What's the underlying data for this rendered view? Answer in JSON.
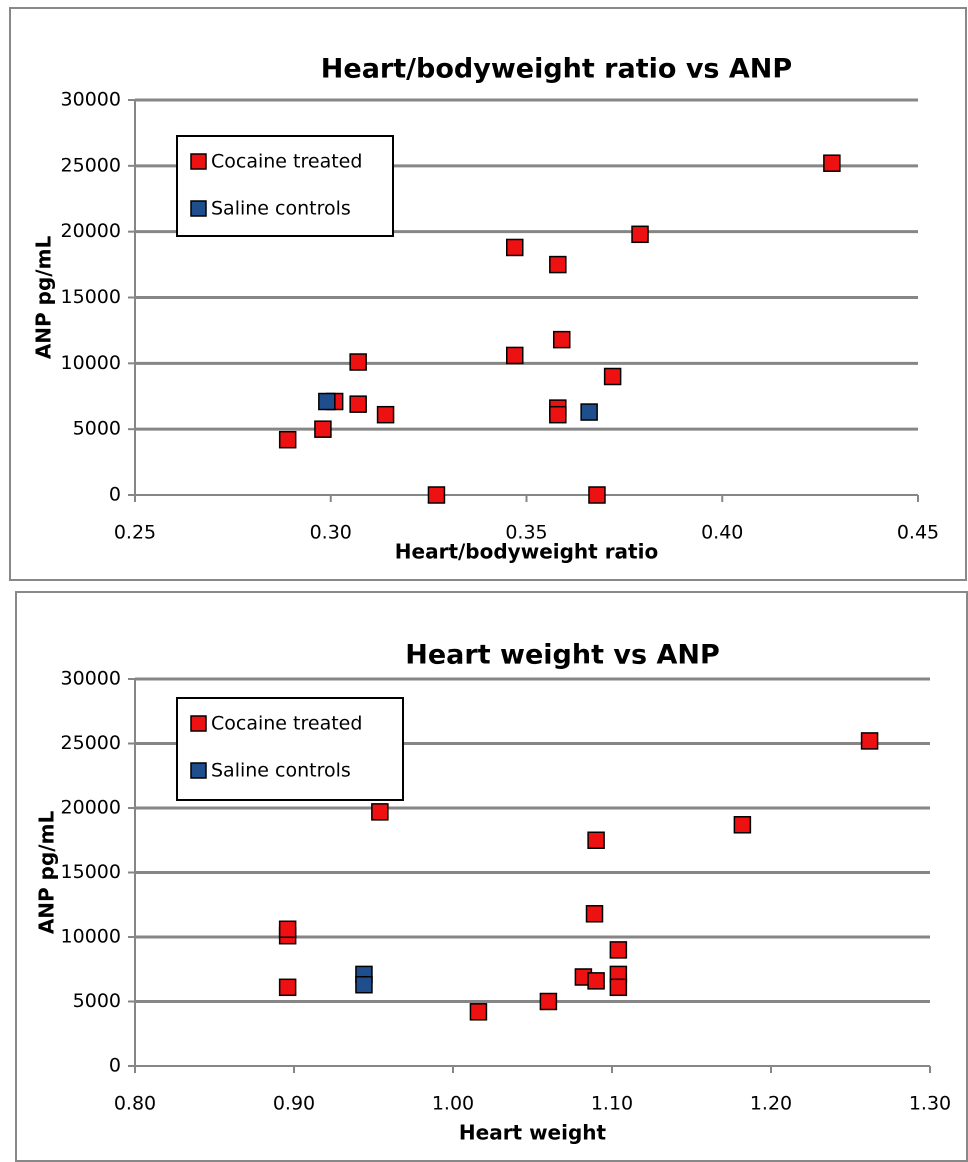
{
  "chart_data": [
    {
      "type": "scatter",
      "title": "Heart/bodyweight ratio vs ANP",
      "x_label": "Heart/bodyweight ratio",
      "y_label": "ANP pg/mL",
      "xlim": [
        0.25,
        0.45
      ],
      "xticks": [
        {
          "value": 0.25,
          "label": "0.25"
        },
        {
          "value": 0.3,
          "label": "0.30"
        },
        {
          "value": 0.35,
          "label": "0.35"
        },
        {
          "value": 0.4,
          "label": "0.40"
        },
        {
          "value": 0.45,
          "label": "0.45"
        }
      ],
      "ylim": [
        0,
        30000
      ],
      "yticks": [
        0,
        5000,
        10000,
        15000,
        20000,
        25000,
        30000
      ],
      "grid": true,
      "legend": "upper left",
      "series": [
        {
          "name": "Cocaine treated",
          "color": "#ee1111",
          "x": [
            0.289,
            0.298,
            0.301,
            0.307,
            0.307,
            0.314,
            0.327,
            0.347,
            0.347,
            0.358,
            0.358,
            0.358,
            0.359,
            0.368,
            0.372,
            0.379,
            0.428
          ],
          "values": [
            4200,
            5000,
            7100,
            6900,
            10100,
            6100,
            0,
            18800,
            10600,
            17500,
            6600,
            6100,
            11800,
            0,
            9000,
            19800,
            25200
          ]
        },
        {
          "name": "Saline controls",
          "color": "#1f4e8c",
          "x": [
            0.299,
            0.366
          ],
          "values": [
            7100,
            6300
          ]
        }
      ]
    },
    {
      "type": "scatter",
      "title": "Heart weight vs ANP",
      "x_label": "Heart weight",
      "y_label": "ANP pg/mL",
      "xlim": [
        0.8,
        1.3
      ],
      "xticks": [
        {
          "value": 0.8,
          "label": "0.80"
        },
        {
          "value": 0.9,
          "label": "0.90"
        },
        {
          "value": 1.0,
          "label": "1.00"
        },
        {
          "value": 1.1,
          "label": "1.10"
        },
        {
          "value": 1.2,
          "label": "1.20"
        },
        {
          "value": 1.3,
          "label": "1.30"
        }
      ],
      "ylim": [
        0,
        30000
      ],
      "yticks": [
        0,
        5000,
        10000,
        15000,
        20000,
        25000,
        30000
      ],
      "grid": true,
      "legend": "upper left",
      "series": [
        {
          "name": "Cocaine treated",
          "color": "#ee1111",
          "x": [
            0.896,
            0.896,
            0.896,
            0.954,
            1.016,
            1.06,
            1.082,
            1.09,
            1.089,
            1.09,
            1.104,
            1.104,
            1.104,
            1.182,
            1.262
          ],
          "values": [
            10100,
            10600,
            6100,
            19700,
            4200,
            5000,
            6900,
            6600,
            11800,
            17500,
            7100,
            6100,
            9000,
            18700,
            25200
          ]
        },
        {
          "name": "Saline controls",
          "color": "#1f4e8c",
          "x": [
            0.944,
            0.944
          ],
          "values": [
            7100,
            6300
          ]
        }
      ]
    }
  ]
}
